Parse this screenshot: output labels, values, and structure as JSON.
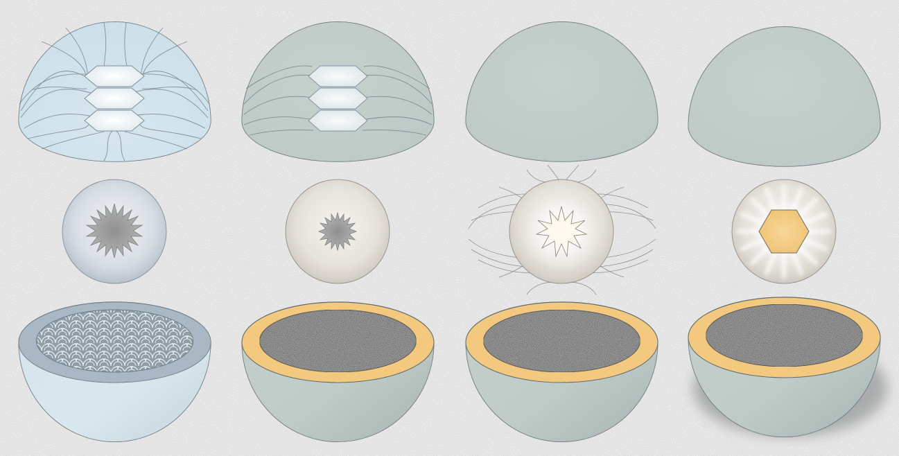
{
  "colors": {
    "background": "#ececec",
    "frost_blue": "#dbe9f2",
    "sage_grey": "#c4cfcc",
    "ice_slab": "#a9b8c6",
    "warm_rim": "#f2c97e",
    "core_speckle": "#8a8a8a",
    "sphere_grey": "#e2e0dc",
    "glow_white": "#fffaf0",
    "line_grey": "#6d7a80"
  },
  "columns": [
    {
      "id": "stage-1",
      "top": {
        "fill": "frost_blue",
        "lines": "dense",
        "hexagons": 3
      },
      "middle": {
        "sphere": "cool",
        "core": "grey-starburst-large"
      },
      "bottom": {
        "fill": "frost_blue",
        "rim": "ice_slab",
        "surface": "scale-pattern"
      }
    },
    {
      "id": "stage-2",
      "top": {
        "fill": "sage_grey",
        "lines": "medium",
        "hexagons": 3
      },
      "middle": {
        "sphere": "warm",
        "core": "grey-starburst-small"
      },
      "bottom": {
        "fill": "sage_grey",
        "rim": "warm_rim",
        "surface": "speckle"
      }
    },
    {
      "id": "stage-3",
      "top": {
        "fill": "sage_grey",
        "lines": "none",
        "hexagons": 0
      },
      "middle": {
        "sphere": "warm",
        "core": "white-starburst",
        "swirl_lines": true
      },
      "bottom": {
        "fill": "sage_grey",
        "rim": "warm_rim",
        "surface": "speckle"
      }
    },
    {
      "id": "stage-4",
      "top": {
        "fill": "sage_grey",
        "lines": "none",
        "hexagons": 0
      },
      "middle": {
        "sphere": "warm",
        "core": "amber-hexagon",
        "rays": true
      },
      "bottom": {
        "fill": "sage_grey",
        "rim": "warm_rim",
        "surface": "speckle",
        "shadow": true
      }
    }
  ]
}
